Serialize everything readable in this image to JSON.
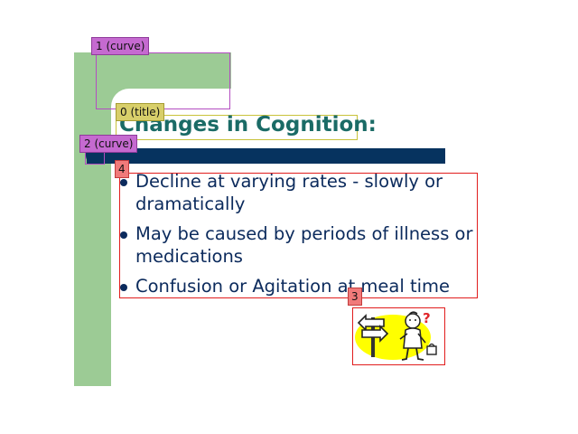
{
  "slide": {
    "title": "Changes in Cognition:",
    "bullets": [
      "Decline at varying rates - slowly or dramatically",
      "May be caused by periods of illness or medications",
      "Confusion or Agitation at meal time"
    ],
    "colors": {
      "green_band": "#9ccb95",
      "blue_bar": "#06335f",
      "title": "#1a6b66",
      "body_text": "#0b2a5c"
    },
    "clipart": {
      "icon": "confused-person-signpost-icon",
      "question_mark": "?"
    }
  },
  "annotations": {
    "curve_1": "1 (curve)",
    "title_0": "0 (title)",
    "curve_2": "2 (curve)",
    "clipart_3": "3",
    "bullets_4": "4"
  }
}
